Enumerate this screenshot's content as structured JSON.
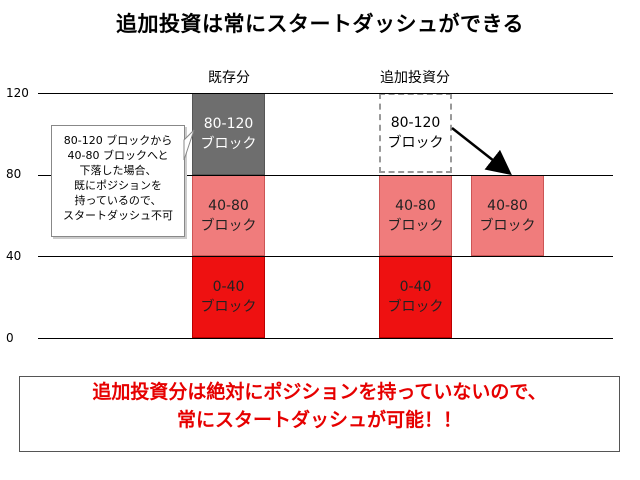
{
  "title": "追加投資は常にスタートダッシュができる",
  "columns": {
    "existing": "既存分",
    "additional": "追加投資分"
  },
  "y_ticks": [
    "120",
    "80",
    "40",
    "0"
  ],
  "blocks": {
    "existing_top": [
      "80-120",
      "ブロック"
    ],
    "existing_mid": [
      "40-80",
      "ブロック"
    ],
    "existing_low": [
      "0-40",
      "ブロック"
    ],
    "additional_dashed": [
      "80-120",
      "ブロック"
    ],
    "additional_mid": [
      "40-80",
      "ブロック"
    ],
    "additional_low": [
      "0-40",
      "ブロック"
    ],
    "additional_moved": [
      "40-80",
      "ブロック"
    ]
  },
  "callout": [
    "80-120 ブロックから",
    "40-80 ブロックへと",
    "下落した場合、",
    "既にポジションを",
    "持っているので、",
    "スタートダッシュ不可"
  ],
  "bottom_message": [
    "追加投資分は絶対にポジションを持っていないので、",
    "常にスタートダッシュが可能！！"
  ],
  "colors": {
    "red": "#ee1111",
    "pink": "#f07c7c",
    "gray": "#6e6e6e",
    "message": "#e60000"
  }
}
